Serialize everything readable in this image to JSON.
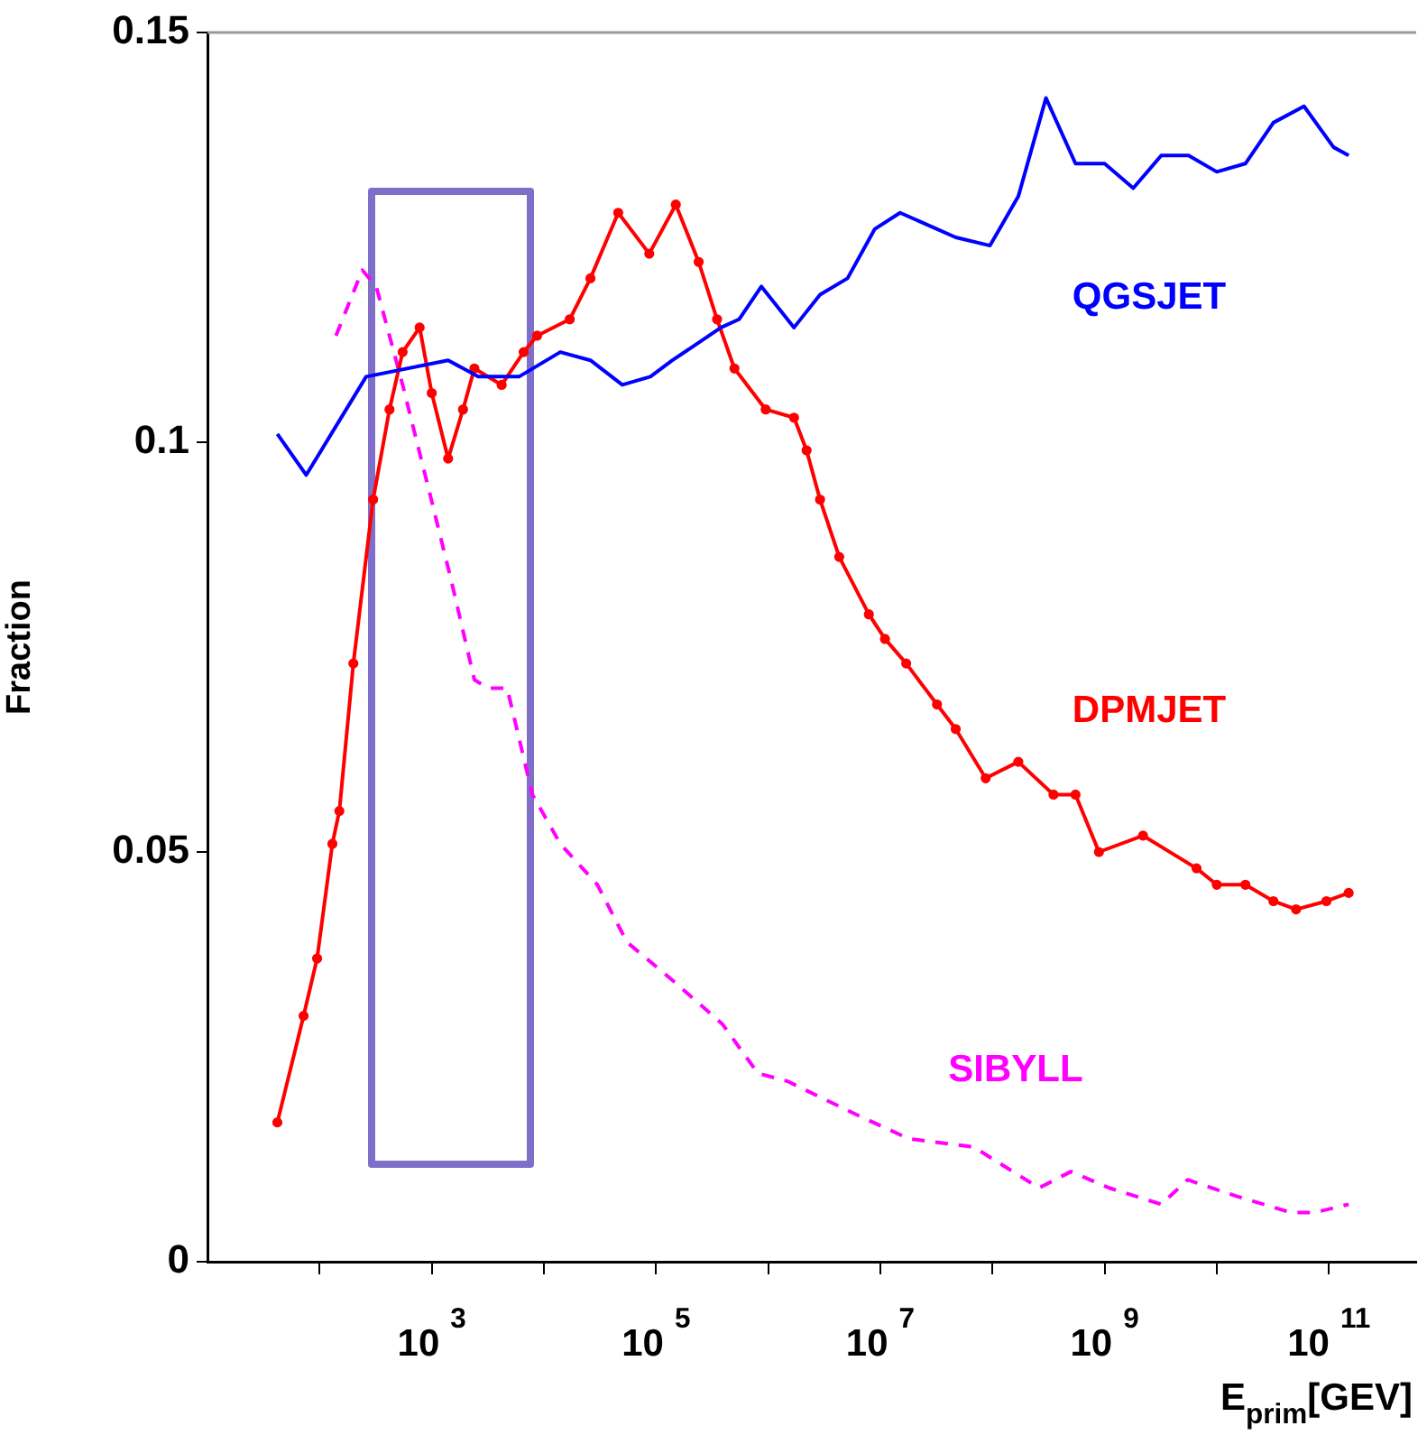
{
  "chart_data": {
    "type": "line",
    "ylabel": "Fraction",
    "xlabel": "E$_{prim}$[GEV]",
    "log": "x",
    "grid": false,
    "legend": false,
    "xlim": [
      10,
      600000000000.0
    ],
    "xticks": [
      {
        "value": 100,
        "label": null
      },
      {
        "value": 1000,
        "label": "10$^{3}$"
      },
      {
        "value": 10000,
        "label": null
      },
      {
        "value": 100000,
        "label": "10$^{5}$"
      },
      {
        "value": 1000000,
        "label": null
      },
      {
        "value": 10000000,
        "label": "10$^{7}$"
      },
      {
        "value": 100000000,
        "label": null
      },
      {
        "value": 1000000000,
        "label": "10$^{9}$"
      },
      {
        "value": 10000000000,
        "label": null
      },
      {
        "value": 100000000000,
        "label": "10$^{11}$"
      }
    ],
    "ylim": [
      0,
      0.15
    ],
    "yticks": [
      0,
      0.05,
      0.1,
      0.15
    ],
    "series": [
      {
        "name": "QGSJET",
        "color": "#0000ff",
        "line_style": "solid",
        "marker": "none",
        "x": [
          42.0,
          76.0,
          260.0,
          1400.0,
          2600.0,
          6000.0,
          14000.0,
          26000.0,
          50000.0,
          89000.0,
          140000.0,
          380000.0,
          550000.0,
          870000.0,
          1700000.0,
          2900000.0,
          5100000.0,
          8900000.0,
          15000000.0,
          47000000.0,
          95000000.0,
          170000000.0,
          300000000.0,
          550000000.0,
          1000000000.0,
          1800000000.0,
          3200000000.0,
          5600000000.0,
          10000000000.0,
          18000000000.0,
          32000000000.0,
          60000000000.0,
          110000000000.0,
          150000000000.0
        ],
        "values": [
          0.101,
          0.096,
          0.108,
          0.11,
          0.108,
          0.108,
          0.111,
          0.11,
          0.107,
          0.108,
          0.11,
          0.114,
          0.115,
          0.119,
          0.114,
          0.118,
          0.12,
          0.126,
          0.128,
          0.125,
          0.124,
          0.13,
          0.142,
          0.134,
          0.134,
          0.131,
          0.135,
          0.135,
          0.133,
          0.134,
          0.139,
          0.141,
          0.136,
          0.135
        ]
      },
      {
        "name": "DPMJET",
        "color": "#ff0000",
        "line_style": "solid",
        "marker": "circle",
        "x": [
          42.0,
          72.0,
          95.0,
          130.0,
          150.0,
          200.0,
          300.0,
          420.0,
          550.0,
          780.0,
          1000.0,
          1400.0,
          1900.0,
          2400.0,
          4200.0,
          6600.0,
          8700.0,
          17000.0,
          26000.0,
          46000.0,
          87000.0,
          150000.0,
          240000.0,
          350000.0,
          500000.0,
          950000.0,
          1700000.0,
          2200000.0,
          2900000.0,
          4300000.0,
          7900000.0,
          11000000.0,
          17000000.0,
          32000000.0,
          47000000.0,
          87000000.0,
          170000000.0,
          350000000.0,
          550000000.0,
          890000000.0,
          2200000000.0,
          6600000000.0,
          10000000000.0,
          18000000000.0,
          32000000000.0,
          51000000000.0,
          95000000000.0,
          150000000000.0
        ],
        "values": [
          0.017,
          0.03,
          0.037,
          0.051,
          0.055,
          0.073,
          0.093,
          0.104,
          0.111,
          0.114,
          0.106,
          0.098,
          0.104,
          0.109,
          0.107,
          0.111,
          0.113,
          0.115,
          0.12,
          0.128,
          0.123,
          0.129,
          0.122,
          0.115,
          0.109,
          0.104,
          0.103,
          0.099,
          0.093,
          0.086,
          0.079,
          0.076,
          0.073,
          0.068,
          0.065,
          0.059,
          0.061,
          0.057,
          0.057,
          0.05,
          0.052,
          0.048,
          0.046,
          0.046,
          0.044,
          0.043,
          0.044,
          0.045
        ]
      },
      {
        "name": "SIBYLL",
        "color": "#ff00ff",
        "line_style": "dashed",
        "marker": "none",
        "x": [
          140.0,
          240.0,
          320.0,
          550.0,
          950.0,
          1500.0,
          2400.0,
          3200.0,
          4700.0,
          7900.0,
          14000.0,
          30000.0,
          55000.0,
          150000.0,
          390000.0,
          810000.0,
          1500000.0,
          6000000.0,
          18000000.0,
          68000000.0,
          260000000.0,
          500000000.0,
          1100000000.0,
          3200000000.0,
          5500000000.0,
          15000000000.0,
          46000000000.0,
          74000000000.0,
          150000000000.0
        ],
        "values": [
          0.113,
          0.121,
          0.119,
          0.107,
          0.094,
          0.083,
          0.071,
          0.07,
          0.07,
          0.057,
          0.051,
          0.046,
          0.039,
          0.034,
          0.029,
          0.023,
          0.022,
          0.018,
          0.015,
          0.014,
          0.009,
          0.011,
          0.009,
          0.007,
          0.01,
          0.008,
          0.006,
          0.006,
          0.007
        ]
      }
    ]
  }
}
